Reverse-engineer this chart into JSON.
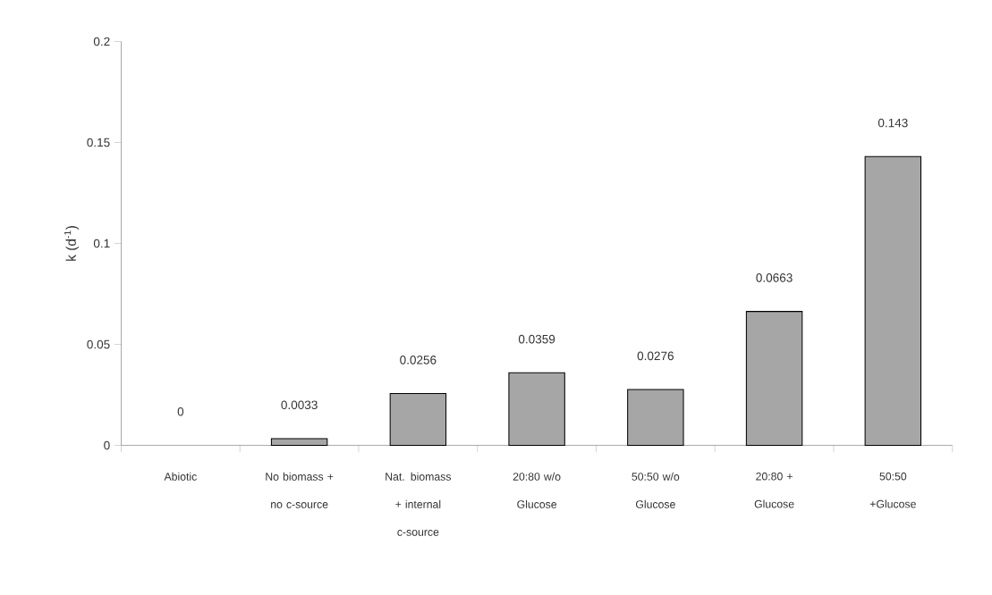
{
  "chart_data": {
    "type": "bar",
    "ylabel": "k (d$^{-1}$)",
    "categories": [
      "Abiotic",
      "No biomass + no c-source",
      "Nat. biomass + internal c-source",
      "20:80 w/o Glucose",
      "50:50 w/o Glucose",
      "20:80 + Glucose",
      "50:50 +Glucose"
    ],
    "values": [
      0,
      0.0033,
      0.0256,
      0.0359,
      0.0276,
      0.0663,
      0.143
    ],
    "color": "#a6a6a6",
    "ylim": [
      0,
      0.2
    ],
    "yticks": [
      0,
      0.05,
      0.1,
      0.15,
      0.2
    ],
    "data_labels": true,
    "grid": false
  }
}
